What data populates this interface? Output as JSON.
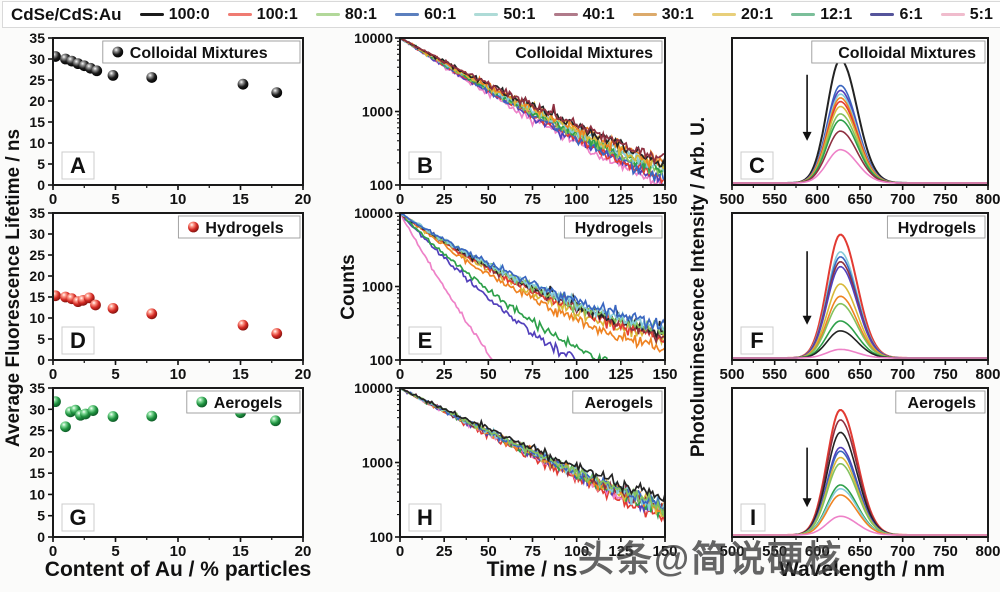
{
  "legend": {
    "title": "CdSe/CdS:Au",
    "entries": [
      {
        "label": "100:0",
        "color": "#1b1b1b"
      },
      {
        "label": "100:1",
        "color": "#ef7b72"
      },
      {
        "label": "80:1",
        "color": "#b2d89a"
      },
      {
        "label": "60:1",
        "color": "#5b7fbe"
      },
      {
        "label": "50:1",
        "color": "#aedbd7"
      },
      {
        "label": "40:1",
        "color": "#b07a8a"
      },
      {
        "label": "30:1",
        "color": "#dcaa6b"
      },
      {
        "label": "20:1",
        "color": "#e8cf7a"
      },
      {
        "label": "12:1",
        "color": "#7bbf9a"
      },
      {
        "label": "6:1",
        "color": "#55549b"
      },
      {
        "label": "5:1",
        "color": "#f0bccd"
      }
    ]
  },
  "axes": {
    "left_ylabel": "Average Fluorescence Lifetime / ns",
    "counts_ylabel": "Counts",
    "pl_ylabel": "Photoluminescence Intensity / Arb. U.",
    "xlabel_left": "Content of Au / % particles",
    "xlabel_mid": "Time / ns",
    "xlabel_right": "Wavelength / nm"
  },
  "watermark": {
    "text": "头条@简说硬核"
  },
  "chart_data": [
    {
      "panel": "A",
      "type": "scatter",
      "title": "Colloidal Mixtures",
      "xlabel": "Content of Au / % particles",
      "ylabel": "Average Fluorescence Lifetime / ns",
      "x": {
        "min": 0,
        "max": 20,
        "ticks": [
          0,
          5,
          10,
          15,
          20
        ],
        "minor": 2.5
      },
      "y": {
        "min": 0,
        "max": 35,
        "ticks": [
          0,
          5,
          10,
          15,
          20,
          25,
          30,
          35
        ]
      },
      "marker": {
        "color": "#1b1b1b",
        "light": "#9a9a9a",
        "dark": "#000000"
      },
      "points": [
        [
          0.2,
          30.6
        ],
        [
          1.0,
          30.0
        ],
        [
          1.5,
          29.5
        ],
        [
          2.0,
          28.9
        ],
        [
          2.5,
          28.4
        ],
        [
          3.0,
          27.8
        ],
        [
          3.5,
          27.2
        ],
        [
          4.8,
          26.1
        ],
        [
          7.9,
          25.6
        ],
        [
          15.2,
          24.0
        ],
        [
          17.9,
          22.0
        ]
      ]
    },
    {
      "panel": "B",
      "type": "decay",
      "title": "Colloidal Mixtures",
      "xlabel": "Time / ns",
      "ylabel": "Counts",
      "x": {
        "min": 0,
        "max": 150,
        "ticks": [
          0,
          25,
          50,
          75,
          100,
          125,
          150
        ],
        "minor": 12.5
      },
      "ylog": {
        "min": 100,
        "max": 10000,
        "ticks": [
          100,
          1000,
          10000
        ]
      },
      "curve": 0.18,
      "noise": 0.05,
      "series": [
        {
          "ratio": "100:0",
          "color": "#232323",
          "end": 200
        },
        {
          "ratio": "100:1",
          "color": "#e23b33",
          "end": 120
        },
        {
          "ratio": "80:1",
          "color": "#84c25e",
          "end": 140
        },
        {
          "ratio": "60:1",
          "color": "#3a66c0",
          "end": 127
        },
        {
          "ratio": "50:1",
          "color": "#85ccda",
          "end": 158
        },
        {
          "ratio": "40:1",
          "color": "#8e3040",
          "end": 212
        },
        {
          "ratio": "30:1",
          "color": "#ef8322",
          "end": 186
        },
        {
          "ratio": "20:1",
          "color": "#d9b93a",
          "end": 170
        },
        {
          "ratio": "12:1",
          "color": "#2ea04a",
          "end": 148
        },
        {
          "ratio": "6:1",
          "color": "#5240bb",
          "end": 110
        },
        {
          "ratio": "5:1",
          "color": "#ee82c8",
          "end": 97
        }
      ]
    },
    {
      "panel": "C",
      "type": "spectra",
      "title": "Colloidal Mixtures",
      "xlabel": "Wavelength / nm",
      "ylabel": "Photoluminescence Intensity / Arb. U.",
      "x": {
        "min": 500,
        "max": 800,
        "ticks": [
          500,
          550,
          600,
          650,
          700,
          750,
          800
        ],
        "minor": 25
      },
      "peak_nm": 627,
      "arrow": {
        "x": 588,
        "y1": 0.25,
        "y2": 0.7
      },
      "series": [
        {
          "ratio": "100:0",
          "color": "#232323",
          "height": 1.0
        },
        {
          "ratio": "60:1",
          "color": "#3a66c0",
          "height": 0.79
        },
        {
          "ratio": "6:1",
          "color": "#5240bb",
          "height": 0.75
        },
        {
          "ratio": "50:1",
          "color": "#85ccda",
          "height": 0.72
        },
        {
          "ratio": "30:1",
          "color": "#ef8322",
          "height": 0.69
        },
        {
          "ratio": "100:1",
          "color": "#e23b33",
          "height": 0.66
        },
        {
          "ratio": "20:1",
          "color": "#d9b93a",
          "height": 0.62
        },
        {
          "ratio": "80:1",
          "color": "#84c25e",
          "height": 0.56
        },
        {
          "ratio": "12:1",
          "color": "#2ea04a",
          "height": 0.51
        },
        {
          "ratio": "40:1",
          "color": "#8e3040",
          "height": 0.42
        },
        {
          "ratio": "5:1",
          "color": "#ee82c8",
          "height": 0.27
        }
      ]
    },
    {
      "panel": "D",
      "type": "scatter",
      "title": "Hydrogels",
      "xlabel": "Content of Au / % particles",
      "ylabel": "Average Fluorescence Lifetime / ns",
      "x": {
        "min": 0,
        "max": 20,
        "ticks": [
          0,
          5,
          10,
          15,
          20
        ],
        "minor": 2.5
      },
      "y": {
        "min": 0,
        "max": 35,
        "ticks": [
          0,
          5,
          10,
          15,
          20,
          25,
          30,
          35
        ]
      },
      "marker": {
        "color": "#d42a24",
        "light": "#ff9e8e",
        "dark": "#7a100c"
      },
      "points": [
        [
          0.2,
          15.3
        ],
        [
          1.0,
          15.0
        ],
        [
          1.5,
          14.6
        ],
        [
          2.0,
          13.9
        ],
        [
          2.4,
          14.2
        ],
        [
          2.9,
          14.8
        ],
        [
          3.4,
          13.1
        ],
        [
          4.8,
          12.3
        ],
        [
          7.9,
          11.0
        ],
        [
          15.2,
          8.3
        ],
        [
          17.9,
          6.3
        ]
      ]
    },
    {
      "panel": "E",
      "type": "decay",
      "title": "Hydrogels",
      "xlabel": "Time / ns",
      "ylabel": "Counts",
      "x": {
        "min": 0,
        "max": 150,
        "ticks": [
          0,
          25,
          50,
          75,
          100,
          125,
          150
        ],
        "minor": 12.5
      },
      "ylog": {
        "min": 100,
        "max": 10000,
        "ticks": [
          100,
          1000,
          10000
        ]
      },
      "curve": 0.5,
      "noise": 0.055,
      "series": [
        {
          "ratio": "100:0",
          "color": "#232323",
          "end": 242
        },
        {
          "ratio": "100:1",
          "color": "#e23b33",
          "end": 205
        },
        {
          "ratio": "80:1",
          "color": "#84c25e",
          "end": 252
        },
        {
          "ratio": "60:1",
          "color": "#3a66c0",
          "end": 292
        },
        {
          "ratio": "50:1",
          "color": "#85ccda",
          "end": 266
        },
        {
          "ratio": "40:1",
          "color": "#8e3040",
          "end": 222
        },
        {
          "ratio": "30:1",
          "color": "#ef8322",
          "end": 136
        },
        {
          "ratio": "20:1",
          "color": "#d9b93a",
          "end": 188
        },
        {
          "ratio": "12:1",
          "color": "#2ea04a",
          "end": 45
        },
        {
          "ratio": "6:1",
          "color": "#5240bb",
          "end": 26
        },
        {
          "ratio": "5:1",
          "color": "#ee82c8",
          "end": 0.5
        }
      ]
    },
    {
      "panel": "F",
      "type": "spectra",
      "title": "Hydrogels",
      "xlabel": "Wavelength / nm",
      "ylabel": "Photoluminescence Intensity / Arb. U.",
      "x": {
        "min": 500,
        "max": 800,
        "ticks": [
          500,
          550,
          600,
          650,
          700,
          750,
          800
        ],
        "minor": 25
      },
      "peak_nm": 627,
      "arrow": {
        "x": 588,
        "y1": 0.26,
        "y2": 0.76
      },
      "series": [
        {
          "ratio": "100:1",
          "color": "#e23b33",
          "height": 1.0
        },
        {
          "ratio": "50:1",
          "color": "#85ccda",
          "height": 0.86
        },
        {
          "ratio": "60:1",
          "color": "#3a66c0",
          "height": 0.82
        },
        {
          "ratio": "40:1",
          "color": "#8e3040",
          "height": 0.78
        },
        {
          "ratio": "6:1",
          "color": "#5240bb",
          "height": 0.74
        },
        {
          "ratio": "20:1",
          "color": "#d9b93a",
          "height": 0.6
        },
        {
          "ratio": "30:1",
          "color": "#ef8322",
          "height": 0.5
        },
        {
          "ratio": "80:1",
          "color": "#84c25e",
          "height": 0.44
        },
        {
          "ratio": "12:1",
          "color": "#2ea04a",
          "height": 0.3
        },
        {
          "ratio": "100:0",
          "color": "#232323",
          "height": 0.22
        },
        {
          "ratio": "5:1",
          "color": "#ee82c8",
          "height": 0.07
        }
      ]
    },
    {
      "panel": "G",
      "type": "scatter",
      "title": "Aerogels",
      "xlabel": "Content of Au / % particles",
      "ylabel": "Average Fluorescence Lifetime / ns",
      "x": {
        "min": 0,
        "max": 20,
        "ticks": [
          0,
          5,
          10,
          15,
          20
        ],
        "minor": 2.5
      },
      "y": {
        "min": 0,
        "max": 35,
        "ticks": [
          0,
          5,
          10,
          15,
          20,
          25,
          30,
          35
        ]
      },
      "marker": {
        "color": "#1f9340",
        "light": "#8adf9f",
        "dark": "#0c5424"
      },
      "points": [
        [
          0.2,
          31.8
        ],
        [
          1.0,
          25.9
        ],
        [
          1.4,
          29.4
        ],
        [
          1.8,
          29.8
        ],
        [
          2.2,
          28.6
        ],
        [
          2.6,
          28.9
        ],
        [
          3.2,
          29.7
        ],
        [
          4.8,
          28.3
        ],
        [
          7.9,
          28.4
        ],
        [
          15.0,
          29.2
        ],
        [
          17.8,
          27.3
        ]
      ]
    },
    {
      "panel": "H",
      "type": "decay",
      "title": "Aerogels",
      "xlabel": "Time / ns",
      "ylabel": "Counts",
      "x": {
        "min": 0,
        "max": 150,
        "ticks": [
          0,
          25,
          50,
          75,
          100,
          125,
          150
        ],
        "minor": 12.5
      },
      "ylog": {
        "min": 100,
        "max": 10000,
        "ticks": [
          100,
          1000,
          10000
        ]
      },
      "curve": 0.14,
      "noise": 0.05,
      "series": [
        {
          "ratio": "100:0",
          "color": "#232323",
          "end": 312
        },
        {
          "ratio": "80:1",
          "color": "#84c25e",
          "end": 258
        },
        {
          "ratio": "60:1",
          "color": "#3a66c0",
          "end": 250
        },
        {
          "ratio": "50:1",
          "color": "#85ccda",
          "end": 244
        },
        {
          "ratio": "40:1",
          "color": "#8e3040",
          "end": 238
        },
        {
          "ratio": "30:1",
          "color": "#ef8322",
          "end": 232
        },
        {
          "ratio": "20:1",
          "color": "#d9b93a",
          "end": 226
        },
        {
          "ratio": "12:1",
          "color": "#2ea04a",
          "end": 220
        },
        {
          "ratio": "6:1",
          "color": "#5240bb",
          "end": 213
        },
        {
          "ratio": "5:1",
          "color": "#ee82c8",
          "end": 202
        },
        {
          "ratio": "100:1",
          "color": "#e23b33",
          "end": 182
        }
      ]
    },
    {
      "panel": "I",
      "type": "spectra",
      "title": "Aerogels",
      "xlabel": "Wavelength / nm",
      "ylabel": "Photoluminescence Intensity / Arb. U.",
      "x": {
        "min": 500,
        "max": 800,
        "ticks": [
          500,
          550,
          600,
          650,
          700,
          750,
          800
        ],
        "minor": 25
      },
      "peak_nm": 627,
      "arrow": {
        "x": 588,
        "y1": 0.4,
        "y2": 0.8
      },
      "series": [
        {
          "ratio": "100:1",
          "color": "#e23b33",
          "height": 1.0
        },
        {
          "ratio": "40:1",
          "color": "#8e3040",
          "height": 0.92
        },
        {
          "ratio": "100:0",
          "color": "#232323",
          "height": 0.82
        },
        {
          "ratio": "6:1",
          "color": "#5240bb",
          "height": 0.7
        },
        {
          "ratio": "60:1",
          "color": "#3a66c0",
          "height": 0.67
        },
        {
          "ratio": "20:1",
          "color": "#d9b93a",
          "height": 0.62
        },
        {
          "ratio": "80:1",
          "color": "#84c25e",
          "height": 0.57
        },
        {
          "ratio": "12:1",
          "color": "#2ea04a",
          "height": 0.4
        },
        {
          "ratio": "50:1",
          "color": "#85ccda",
          "height": 0.37
        },
        {
          "ratio": "30:1",
          "color": "#ef8322",
          "height": 0.32
        },
        {
          "ratio": "5:1",
          "color": "#ee82c8",
          "height": 0.15
        }
      ]
    }
  ]
}
